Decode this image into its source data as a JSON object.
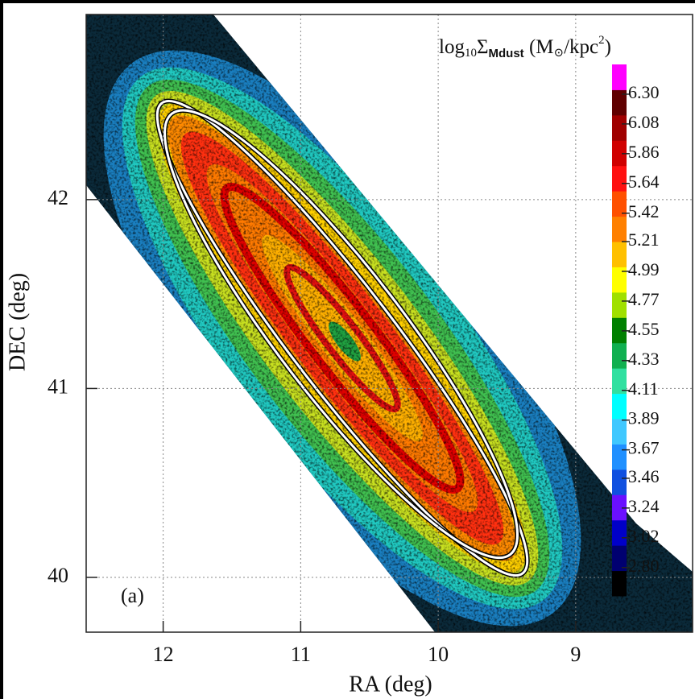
{
  "chart_data": {
    "type": "heatmap",
    "xlabel": "RA (deg)",
    "ylabel": "DEC (deg)",
    "annotation": "(a)",
    "xlim": [
      12.56,
      8.15
    ],
    "xticks": [
      12,
      11,
      10,
      9
    ],
    "ylim": [
      39.71,
      42.98
    ],
    "yticks": [
      40,
      41,
      42
    ],
    "grid": true,
    "colorbar": {
      "label": [
        "log",
        "10",
        "Σ",
        "Mdust",
        " (M",
        "⊙",
        "/kpc",
        "2",
        ")"
      ],
      "lim": [
        2.59,
        6.52
      ],
      "ticks": [
        {
          "value": 2.8,
          "label": "2.80"
        },
        3.02,
        3.24,
        3.46,
        3.67,
        3.89,
        4.11,
        4.33,
        4.55,
        4.77,
        4.99,
        5.21,
        5.42,
        5.64,
        5.86,
        6.08,
        {
          "value": 6.3,
          "label": "6.30"
        }
      ],
      "colors": [
        "#000000",
        "#000070",
        "#0000c8",
        "#6a10ff",
        "#1050e0",
        "#2090ff",
        "#40c8ff",
        "#00ffff",
        "#30e0a0",
        "#10b050",
        "#008000",
        "#a0e000",
        "#ffff00",
        "#ffc000",
        "#ff8000",
        "#ff5000",
        "#ff1010",
        "#d00000",
        "#a00000",
        "#600000",
        "#ff00ff"
      ]
    }
  }
}
